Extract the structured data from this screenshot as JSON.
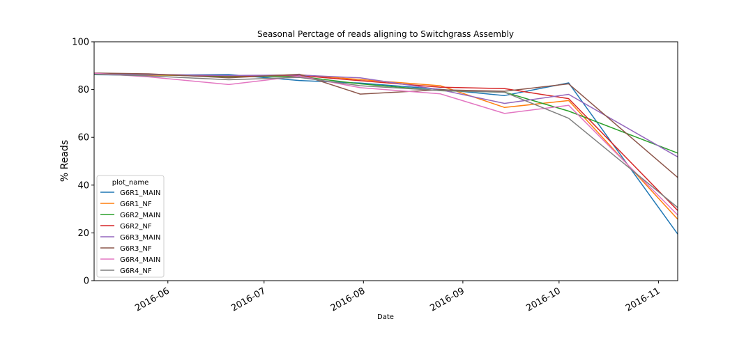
{
  "chart_data": {
    "type": "line",
    "title": "Seasonal Perctage of reads aligning to Switchgrass Assembly",
    "xlabel": "Date",
    "ylabel": "% Reads",
    "ylim": [
      0,
      100
    ],
    "xlim": [
      "2016-05-09",
      "2016-11-07"
    ],
    "y_ticks": [
      0,
      20,
      40,
      60,
      80,
      100
    ],
    "x_ticks": [
      {
        "date": "2016-06-01",
        "label": "2016-06"
      },
      {
        "date": "2016-07-01",
        "label": "2016-07"
      },
      {
        "date": "2016-08-01",
        "label": "2016-08"
      },
      {
        "date": "2016-09-01",
        "label": "2016-09"
      },
      {
        "date": "2016-10-01",
        "label": "2016-10"
      },
      {
        "date": "2016-11-01",
        "label": "2016-11"
      }
    ],
    "grid": false,
    "legend": {
      "title": "plot_name",
      "position": "center-left"
    },
    "x": [
      "2016-05-09",
      "2016-05-26",
      "2016-06-20",
      "2016-07-12",
      "2016-07-31",
      "2016-08-25",
      "2016-09-14",
      "2016-10-04",
      "2016-11-07"
    ],
    "series": [
      {
        "name": "G6R1_MAIN",
        "color": "#1f77b4",
        "values": [
          86.2,
          86.0,
          86.3,
          83.8,
          82.7,
          80.1,
          77.5,
          82.8,
          19.5
        ]
      },
      {
        "name": "G6R1_NF",
        "color": "#ff7f0e",
        "values": [
          86.6,
          86.1,
          85.6,
          86.2,
          84.2,
          81.6,
          72.5,
          75.4,
          25.7
        ]
      },
      {
        "name": "G6R2_MAIN",
        "color": "#2ca02c",
        "values": [
          86.3,
          86.3,
          85.4,
          85.5,
          82.4,
          79.5,
          78.9,
          71.0,
          53.4
        ]
      },
      {
        "name": "G6R2_NF",
        "color": "#d62728",
        "values": [
          86.7,
          86.4,
          85.7,
          85.9,
          83.7,
          81.0,
          80.4,
          76.2,
          29.4
        ]
      },
      {
        "name": "G6R3_MAIN",
        "color": "#9467bd",
        "values": [
          86.6,
          86.3,
          85.9,
          86.1,
          84.9,
          79.9,
          74.2,
          78.0,
          51.8
        ]
      },
      {
        "name": "G6R3_NF",
        "color": "#8c564b",
        "values": [
          86.9,
          86.6,
          84.9,
          86.4,
          78.1,
          79.9,
          79.3,
          82.4,
          43.2
        ]
      },
      {
        "name": "G6R4_MAIN",
        "color": "#e377c2",
        "values": [
          86.8,
          85.3,
          82.1,
          85.6,
          80.8,
          78.2,
          70.0,
          73.4,
          27.5
        ]
      },
      {
        "name": "G6R4_NF",
        "color": "#7f7f7f",
        "values": [
          86.4,
          85.7,
          84.1,
          85.1,
          81.6,
          79.6,
          78.9,
          68.0,
          30.6
        ]
      }
    ]
  }
}
